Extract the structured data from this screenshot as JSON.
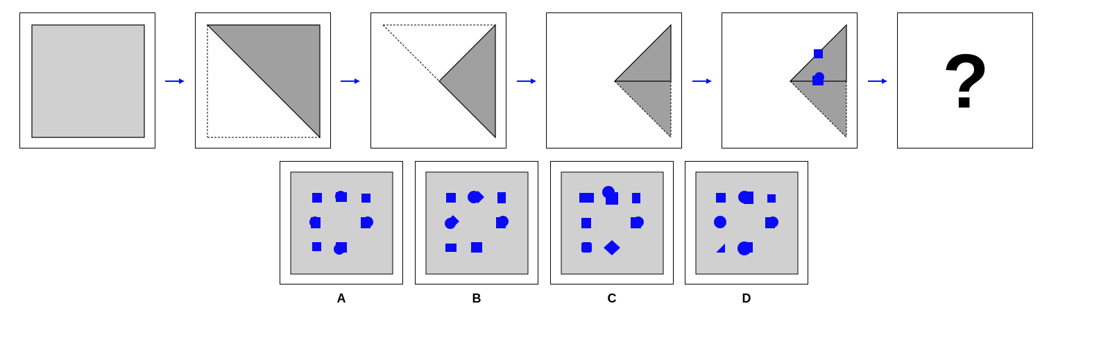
{
  "question_mark": "?",
  "colors": {
    "fold_gray": "#a0a0a0",
    "paper_gray": "#d0d0d0",
    "hole_blue": "#0a0af5",
    "arrow_blue": "#1010f0"
  },
  "sequence": [
    {
      "step": 1,
      "content": "square-paper"
    },
    {
      "step": 2,
      "content": "fold-diagonal"
    },
    {
      "step": 3,
      "content": "fold-again"
    },
    {
      "step": 4,
      "content": "fold-third"
    },
    {
      "step": 5,
      "content": "punch-holes"
    },
    {
      "step": 6,
      "content": "question"
    }
  ],
  "options": [
    {
      "label": "A"
    },
    {
      "label": "B"
    },
    {
      "label": "C"
    },
    {
      "label": "D"
    }
  ]
}
